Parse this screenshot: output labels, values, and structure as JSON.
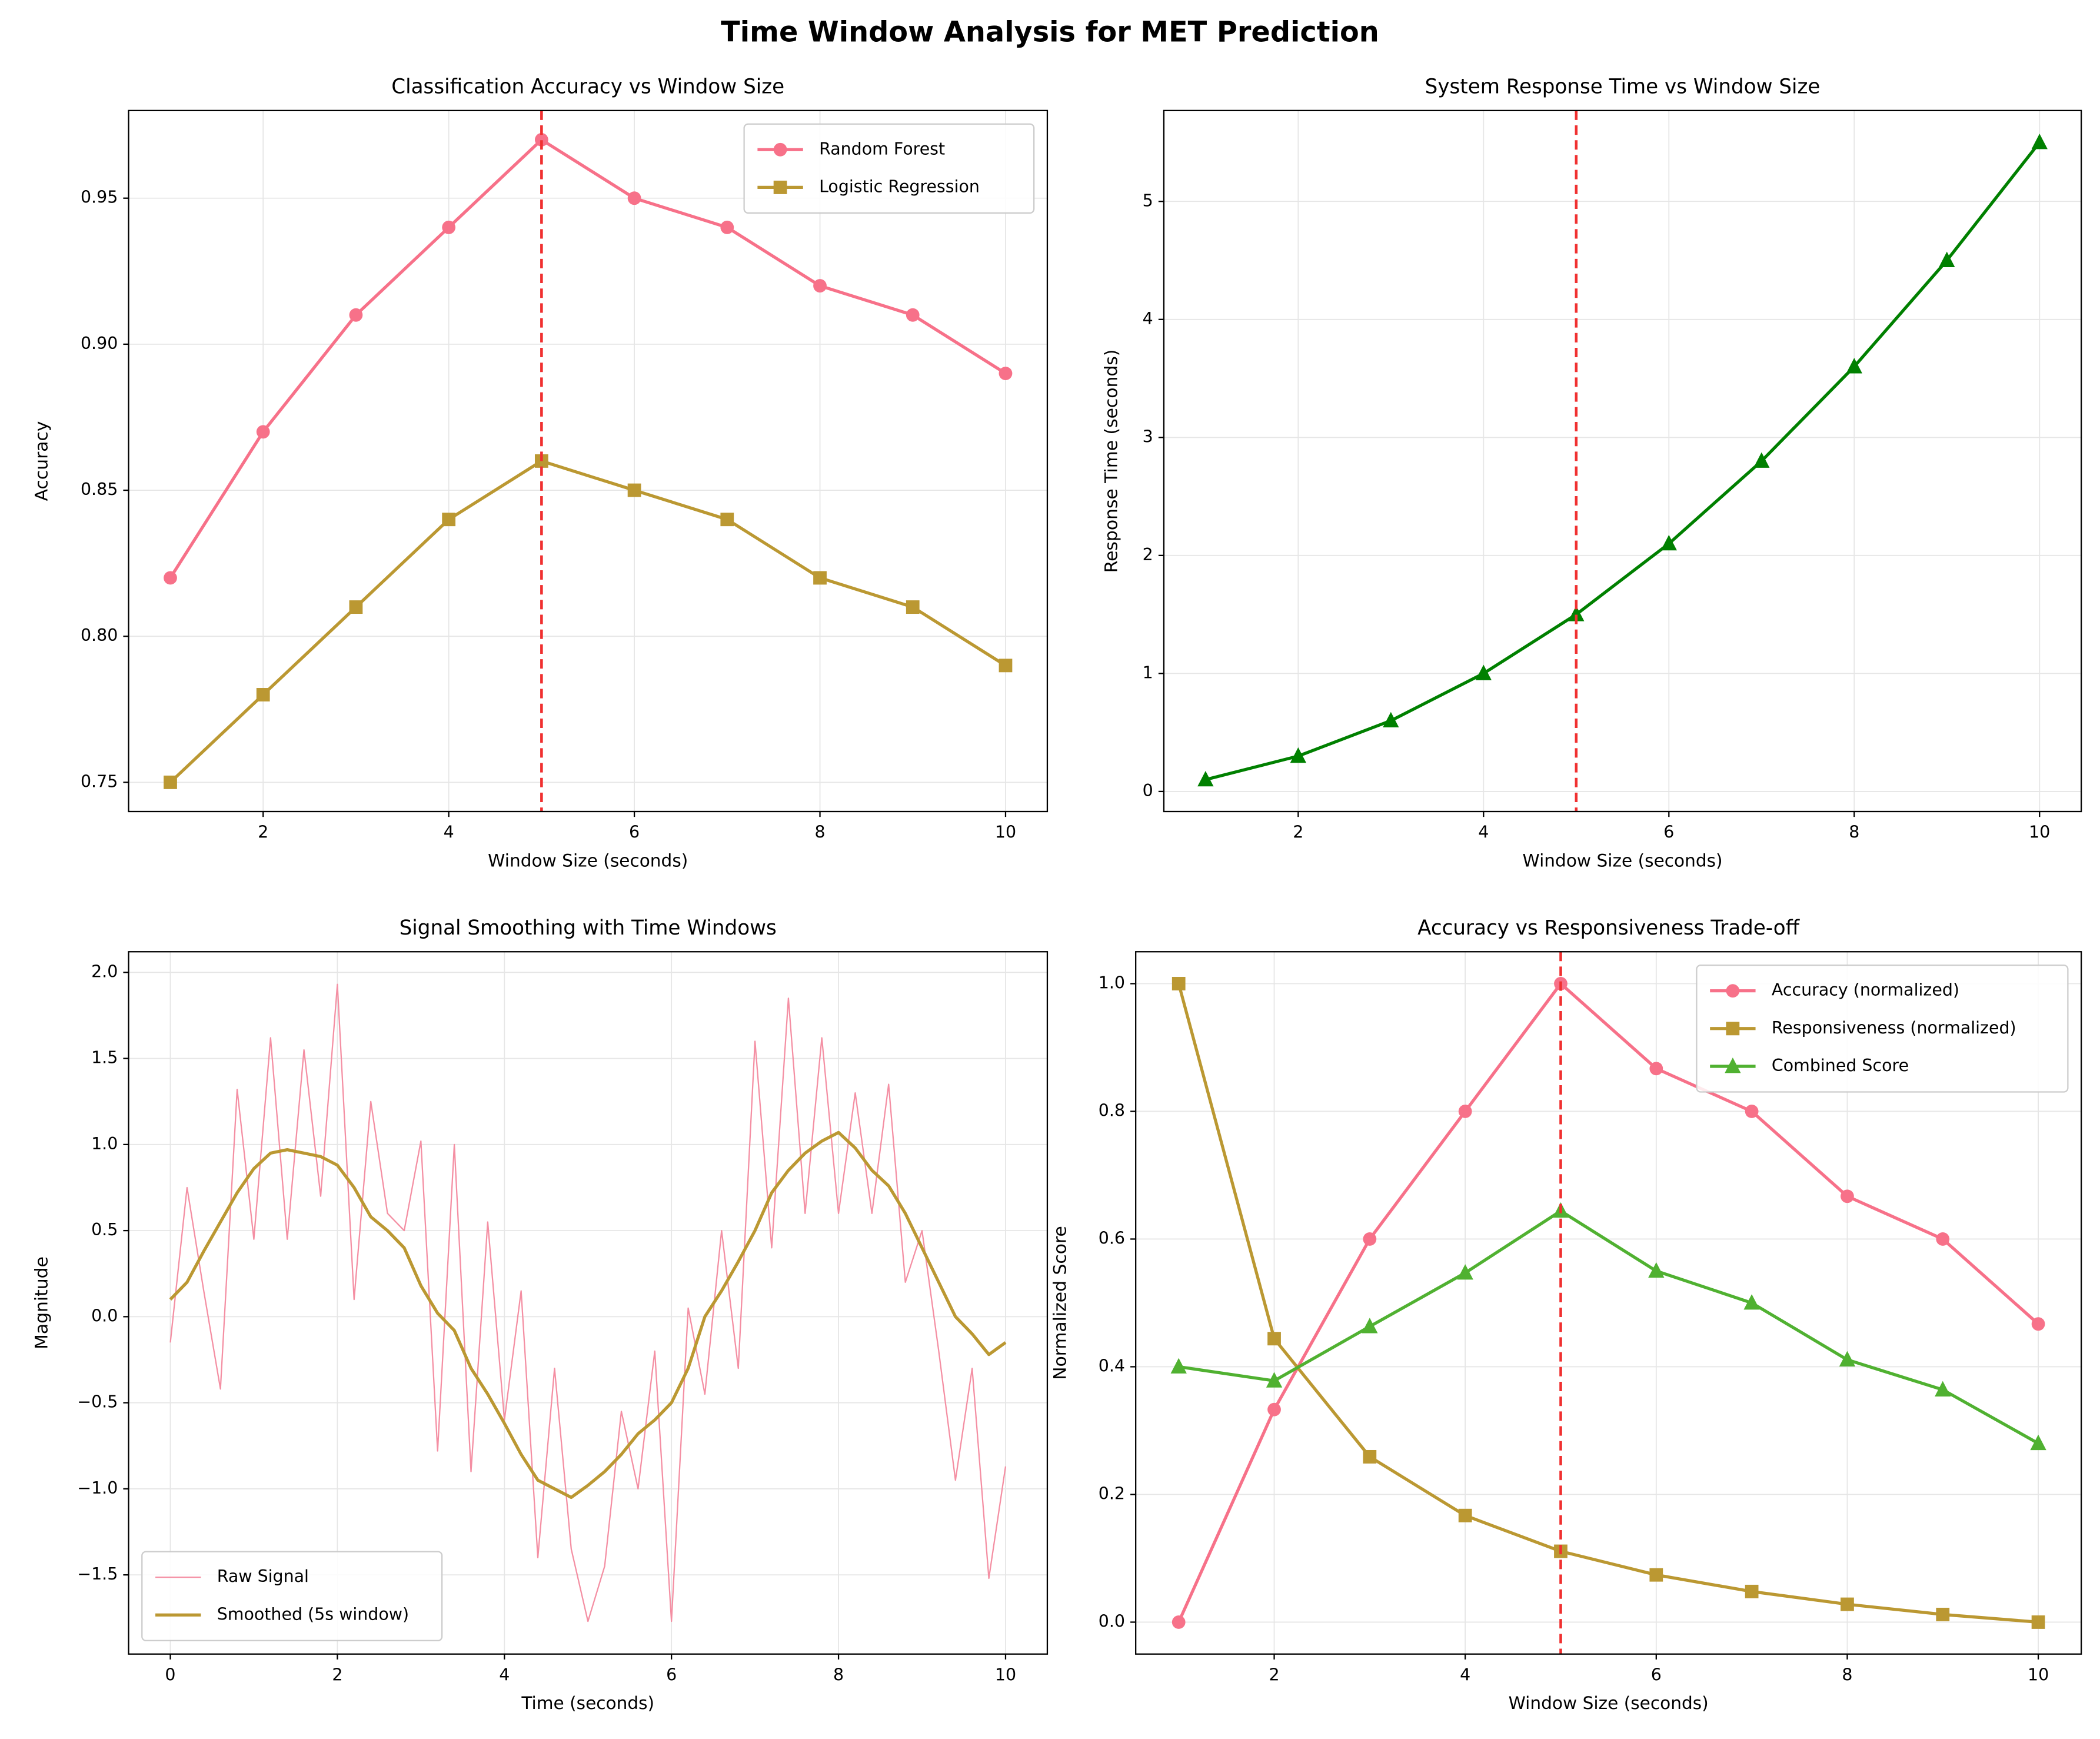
{
  "title": "Time Window Analysis for MET Prediction",
  "chart_data": [
    {
      "type": "line",
      "title": "Classification Accuracy vs Window Size",
      "xlabel": "Window Size (seconds)",
      "ylabel": "Accuracy",
      "x": [
        1,
        2,
        3,
        4,
        5,
        6,
        7,
        8,
        9,
        10
      ],
      "xlim": [
        0.55,
        10.45
      ],
      "xticks": [
        2,
        4,
        6,
        8,
        10
      ],
      "ylim": [
        0.74,
        0.98
      ],
      "yticks": [
        0.75,
        {
          "value": 0.8,
          "label": "0.80"
        },
        0.85,
        {
          "value": 0.9,
          "label": "0.90"
        },
        0.95
      ],
      "grid": true,
      "vline": 5,
      "legend": "upper right",
      "series": [
        {
          "name": "Random Forest",
          "color": "#f77189",
          "marker": "circle",
          "values": [
            0.82,
            0.87,
            0.91,
            0.94,
            0.97,
            0.95,
            0.94,
            0.92,
            0.91,
            0.89
          ]
        },
        {
          "name": "Logistic Regression",
          "color": "#bb9832",
          "marker": "square",
          "values": [
            0.75,
            0.78,
            0.81,
            0.84,
            0.86,
            0.85,
            0.84,
            0.82,
            0.81,
            0.79
          ]
        }
      ]
    },
    {
      "type": "line",
      "title": "System Response Time vs Window Size",
      "xlabel": "Window Size (seconds)",
      "ylabel": "Response Time (seconds)",
      "x": [
        1,
        2,
        3,
        4,
        5,
        6,
        7,
        8,
        9,
        10
      ],
      "xlim": [
        0.55,
        10.45
      ],
      "xticks": [
        2,
        4,
        6,
        8,
        10
      ],
      "ylim": [
        -0.17,
        5.77
      ],
      "yticks": [
        0,
        1,
        2,
        3,
        4,
        5
      ],
      "grid": true,
      "vline": 5,
      "series": [
        {
          "color": "#008000",
          "marker": "triangle",
          "values": [
            0.1,
            0.3,
            0.6,
            1.0,
            1.5,
            2.1,
            2.8,
            3.6,
            4.5,
            5.5
          ]
        }
      ]
    },
    {
      "type": "line",
      "title": "Signal Smoothing with Time Windows",
      "xlabel": "Time (seconds)",
      "ylabel": "Magnitude",
      "x": [
        0,
        0.2,
        0.4,
        0.6,
        0.8,
        1,
        1.2,
        1.4,
        1.6,
        1.8,
        2,
        2.2,
        2.4,
        2.6,
        2.8,
        3,
        3.2,
        3.4,
        3.6,
        3.8,
        4,
        4.2,
        4.4,
        4.6,
        4.8,
        5,
        5.2,
        5.4,
        5.6,
        5.8,
        6,
        6.2,
        6.4,
        6.6,
        6.8,
        7,
        7.2,
        7.4,
        7.6,
        7.8,
        8,
        8.2,
        8.4,
        8.6,
        8.8,
        9,
        9.2,
        9.4,
        9.6,
        9.8,
        10
      ],
      "xlim": [
        -0.5,
        10.5
      ],
      "xticks": [
        0,
        2,
        4,
        6,
        8,
        10
      ],
      "ylim": [
        -1.96,
        2.12
      ],
      "yticks": [
        {
          "value": -1.5,
          "label": "−1.5"
        },
        {
          "value": -1.0,
          "label": "−1.0"
        },
        {
          "value": -0.5,
          "label": "−0.5"
        },
        {
          "value": 0,
          "label": "0.0"
        },
        0.5,
        {
          "value": 1,
          "label": "1.0"
        },
        1.5,
        {
          "value": 2,
          "label": "2.0"
        }
      ],
      "grid": true,
      "legend": "lower left",
      "series": [
        {
          "name": "Raw Signal",
          "color": "#f48fa3",
          "line_style": "thin",
          "values": [
            -0.15,
            0.75,
            0.15,
            -0.42,
            1.32,
            0.45,
            1.62,
            0.45,
            1.55,
            0.7,
            1.93,
            0.1,
            1.25,
            0.6,
            0.5,
            1.02,
            -0.78,
            1.0,
            -0.9,
            0.55,
            -0.6,
            0.15,
            -1.4,
            -0.3,
            -1.35,
            -1.77,
            -1.45,
            -0.55,
            -1.0,
            -0.2,
            -1.77,
            0.05,
            -0.45,
            0.5,
            -0.3,
            1.6,
            0.4,
            1.85,
            0.6,
            1.62,
            0.6,
            1.3,
            0.6,
            1.35,
            0.2,
            0.5,
            -0.2,
            -0.95,
            -0.3,
            -1.52,
            -0.87
          ]
        },
        {
          "name": "Smoothed (5s window)",
          "color": "#bb9832",
          "values": [
            0.1,
            0.2,
            0.38,
            0.55,
            0.72,
            0.86,
            0.95,
            0.97,
            0.95,
            0.93,
            0.88,
            0.75,
            0.58,
            0.5,
            0.4,
            0.18,
            0.02,
            -0.08,
            -0.3,
            -0.45,
            -0.62,
            -0.8,
            -0.95,
            -1.0,
            -1.05,
            -0.98,
            -0.9,
            -0.8,
            -0.68,
            -0.6,
            -0.5,
            -0.3,
            0.0,
            0.15,
            0.32,
            0.5,
            0.72,
            0.85,
            0.95,
            1.02,
            1.07,
            0.98,
            0.85,
            0.76,
            0.6,
            0.4,
            0.2,
            0.0,
            -0.1,
            -0.22,
            -0.15
          ]
        }
      ]
    },
    {
      "type": "line",
      "title": "Accuracy vs Responsiveness Trade-off",
      "xlabel": "Window Size (seconds)",
      "ylabel": "Normalized Score",
      "x": [
        1,
        2,
        3,
        4,
        5,
        6,
        7,
        8,
        9,
        10
      ],
      "xlim": [
        0.55,
        10.45
      ],
      "xticks": [
        2,
        4,
        6,
        8,
        10
      ],
      "ylim": [
        -0.05,
        1.05
      ],
      "yticks": [
        {
          "value": 0,
          "label": "0.0"
        },
        0.2,
        0.4,
        0.6,
        0.8,
        {
          "value": 1,
          "label": "1.0"
        }
      ],
      "grid": true,
      "vline": 5,
      "legend": "upper right",
      "series": [
        {
          "name": "Accuracy (normalized)",
          "color": "#f77189",
          "marker": "circle",
          "values": [
            0,
            0.333,
            0.6,
            0.8,
            1.0,
            0.867,
            0.8,
            0.667,
            0.6,
            0.467
          ]
        },
        {
          "name": "Responsiveness (normalized)",
          "color": "#bb9832",
          "marker": "square",
          "values": [
            1.0,
            0.444,
            0.259,
            0.167,
            0.111,
            0.074,
            0.048,
            0.028,
            0.012,
            0
          ]
        },
        {
          "name": "Combined Score",
          "color": "#50b131",
          "marker": "triangle",
          "values": [
            0.4,
            0.378,
            0.463,
            0.547,
            0.644,
            0.55,
            0.5,
            0.411,
            0.364,
            0.28
          ]
        }
      ]
    }
  ]
}
